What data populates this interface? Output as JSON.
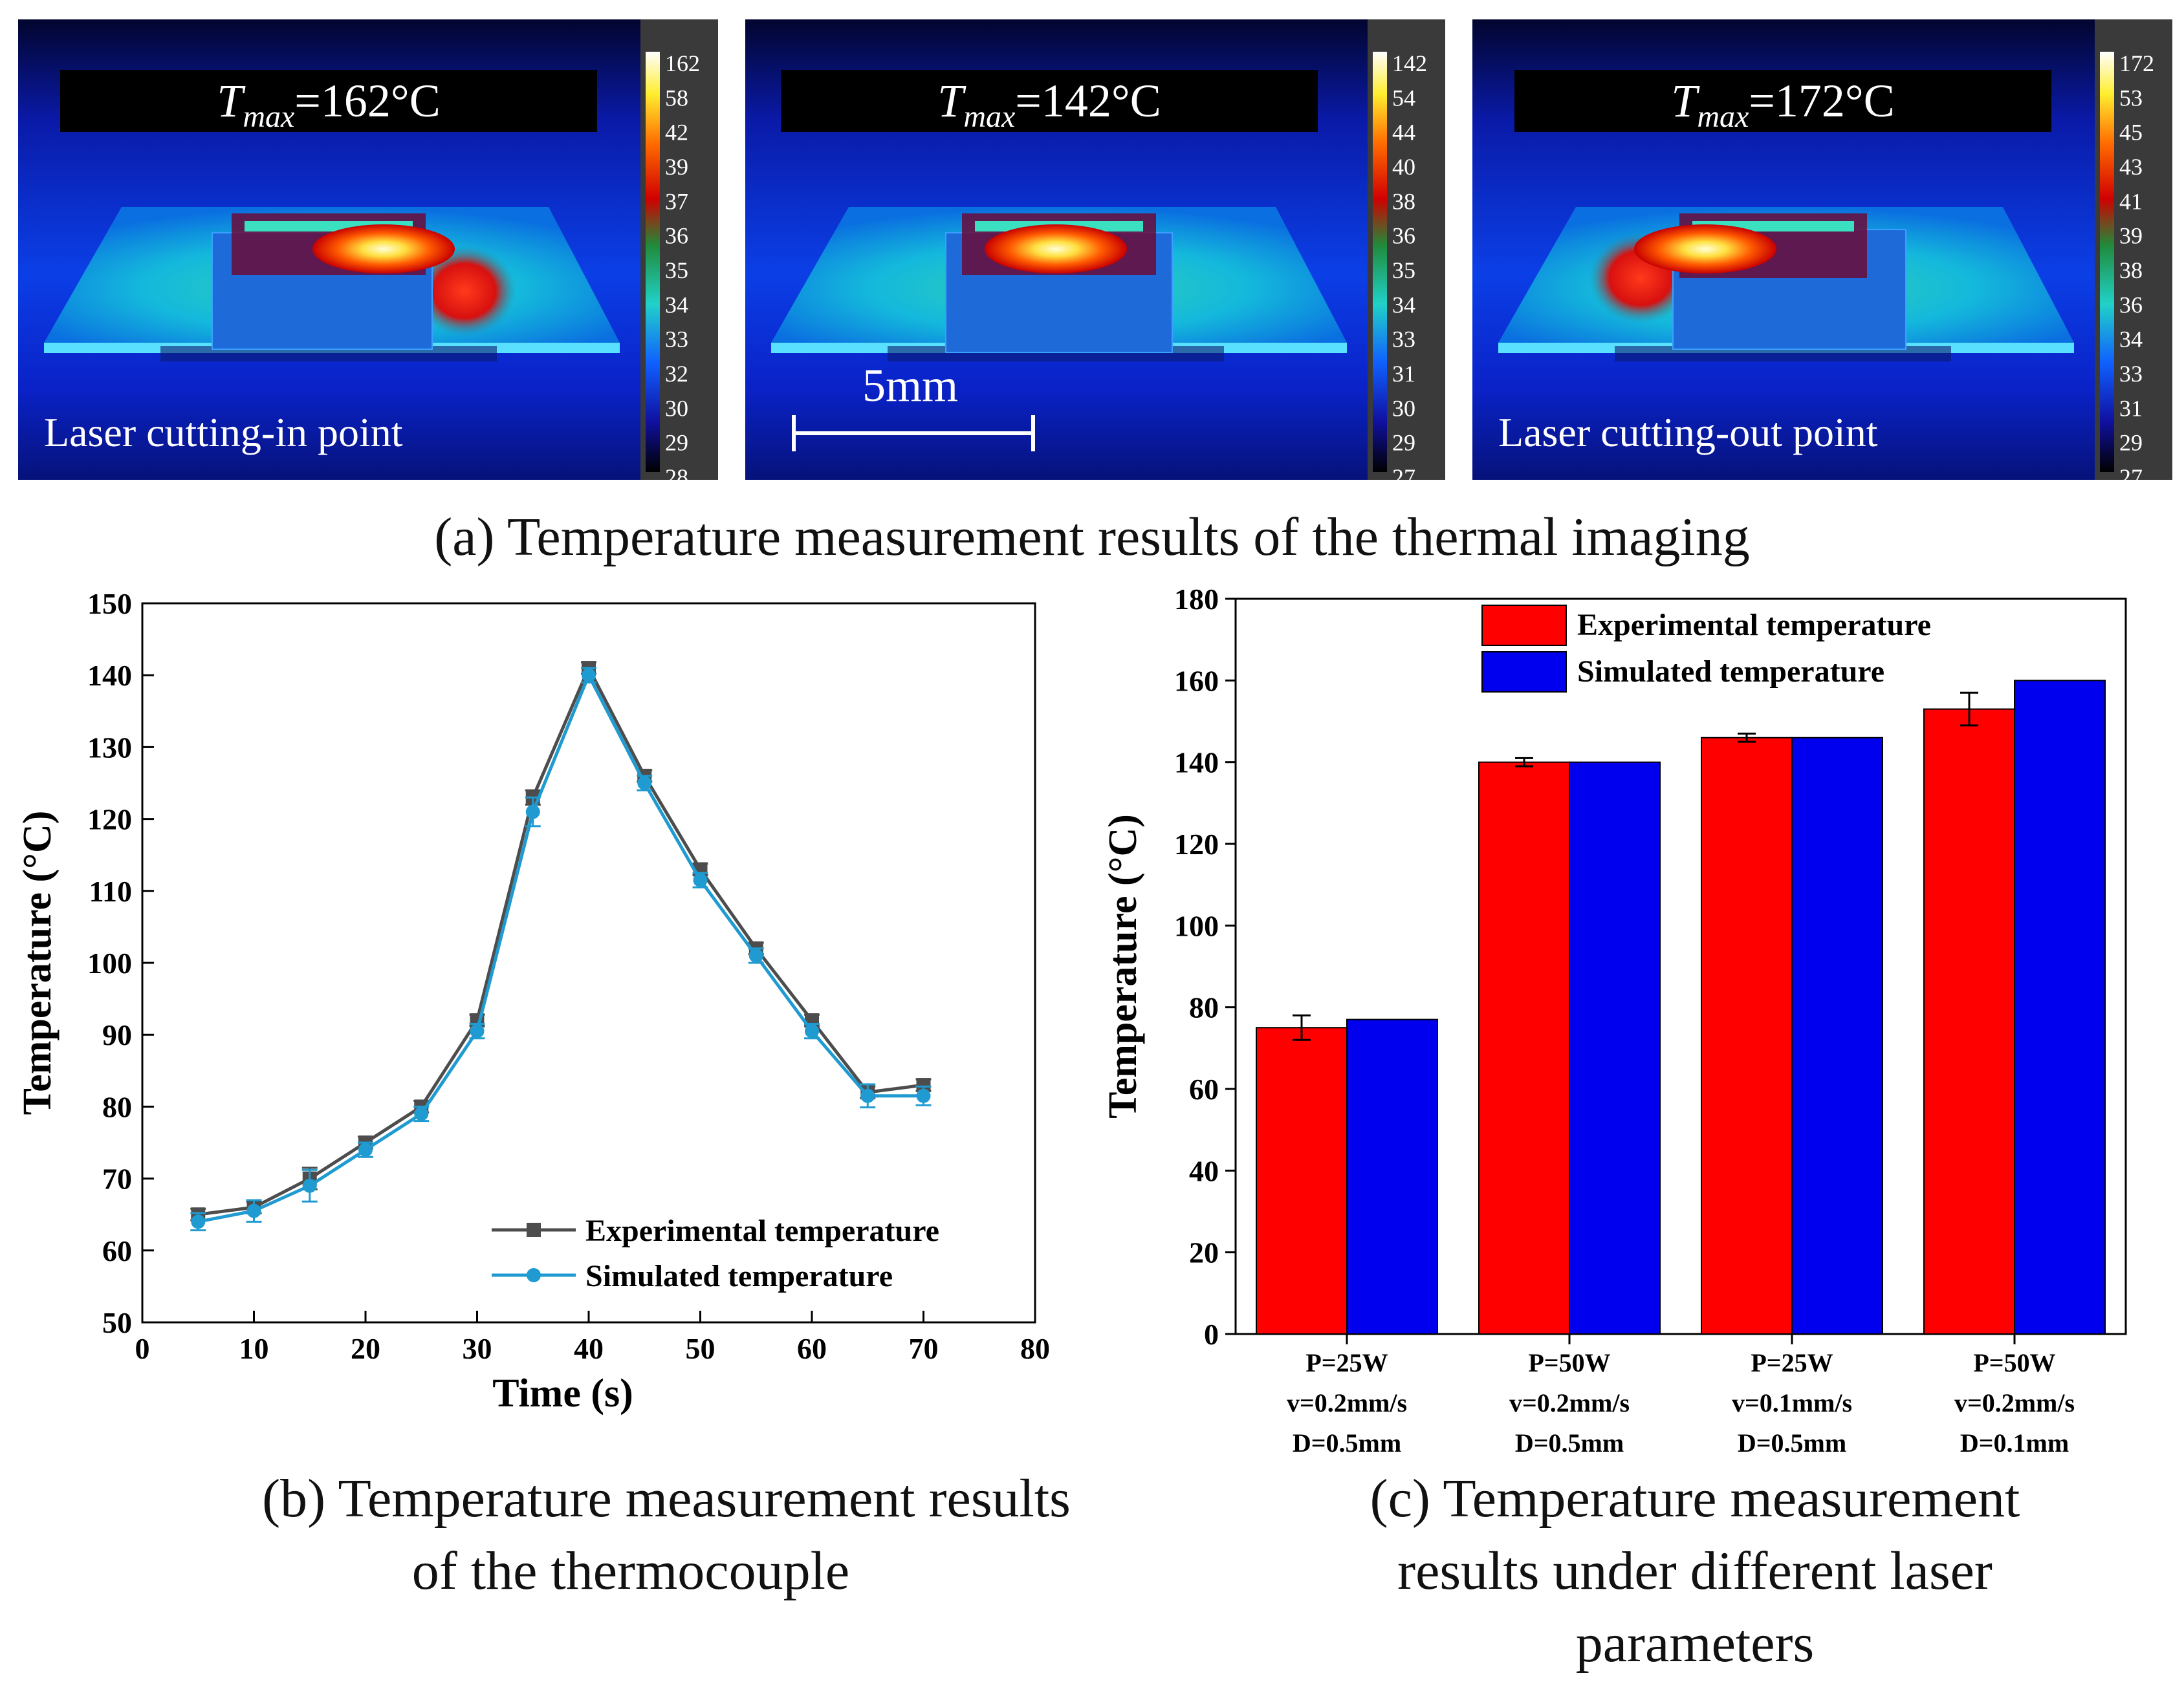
{
  "thermal_panels": [
    {
      "tmax_label": "=162°C",
      "location_label": "Laser cutting-in point",
      "colorbar_ticks": [
        "162",
        "58",
        "42",
        "39",
        "37",
        "36",
        "35",
        "34",
        "33",
        "32",
        "30",
        "29",
        "28"
      ]
    },
    {
      "tmax_label": "=142°C",
      "location_label": "",
      "colorbar_ticks": [
        "142",
        "54",
        "44",
        "40",
        "38",
        "36",
        "35",
        "34",
        "33",
        "31",
        "30",
        "29",
        "27"
      ]
    },
    {
      "tmax_label": "=172°C",
      "location_label": "Laser cutting-out point",
      "colorbar_ticks": [
        "172",
        "53",
        "45",
        "43",
        "41",
        "39",
        "38",
        "36",
        "34",
        "33",
        "31",
        "29",
        "27"
      ]
    }
  ],
  "tmax_symbol": "T",
  "tmax_subscript": "max",
  "scale_bar_label": "5mm",
  "captions": {
    "a": "(a) Temperature measurement results of the thermal imaging",
    "b_line1": "(b) Temperature measurement results",
    "b_line2": "of the thermocouple",
    "c_line1": "(c) Temperature measurement",
    "c_line2": "results under different laser",
    "c_line3": "parameters"
  },
  "colors": {
    "experimental_line": "#4d4d4d",
    "simulated_line": "#1f9bd1",
    "experimental_bar": "#ff0000",
    "simulated_bar": "#0000ee"
  },
  "chart_data": [
    {
      "type": "line",
      "xlabel": "Time (s)",
      "ylabel": "Temperature (°C)",
      "xlim": [
        0,
        80
      ],
      "ylim": [
        50,
        150
      ],
      "xticks": [
        "0",
        "10",
        "20",
        "30",
        "40",
        "50",
        "60",
        "70",
        "80"
      ],
      "yticks": [
        "50",
        "60",
        "70",
        "80",
        "90",
        "100",
        "110",
        "120",
        "130",
        "140",
        "150"
      ],
      "x": [
        5,
        10,
        15,
        20,
        25,
        30,
        35,
        40,
        45,
        50,
        55,
        60,
        65,
        70
      ],
      "series": [
        {
          "name": "Experimental temperature",
          "values": [
            65,
            66,
            70,
            75,
            80,
            92,
            123,
            141,
            126,
            113,
            102,
            92,
            82,
            83
          ],
          "errors": [
            0.8,
            0.8,
            1.5,
            0.8,
            0.8,
            0.8,
            1.0,
            0.8,
            0.8,
            0.8,
            0.8,
            0.8,
            0.8,
            0.8
          ]
        },
        {
          "name": "Simulated temperature",
          "values": [
            64,
            65.5,
            69,
            74,
            79,
            90.5,
            121,
            140,
            125,
            111.5,
            101,
            90.5,
            81.5,
            81.5
          ],
          "errors": [
            1.2,
            1.5,
            2.2,
            1.0,
            1.0,
            1.0,
            2.0,
            1.0,
            1.0,
            1.0,
            1.0,
            1.0,
            1.6,
            1.3
          ]
        }
      ],
      "legend": "bottom-right"
    },
    {
      "type": "bar",
      "ylabel": "Temperature (°C)",
      "ylim": [
        0,
        180
      ],
      "yticks": [
        "0",
        "20",
        "40",
        "60",
        "80",
        "100",
        "120",
        "140",
        "160",
        "180"
      ],
      "categories": [
        [
          "P=25W",
          "v=0.2mm/s",
          "D=0.5mm"
        ],
        [
          "P=50W",
          "v=0.2mm/s",
          "D=0.5mm"
        ],
        [
          "P=25W",
          "v=0.1mm/s",
          "D=0.5mm"
        ],
        [
          "P=50W",
          "v=0.2mm/s",
          "D=0.1mm"
        ]
      ],
      "series": [
        {
          "name": "Experimental temperature",
          "values": [
            75,
            140,
            146,
            153
          ],
          "errors": [
            3,
            1,
            1,
            4
          ]
        },
        {
          "name": "Simulated temperature",
          "values": [
            77,
            140,
            146,
            160
          ]
        }
      ],
      "legend": "top"
    }
  ]
}
